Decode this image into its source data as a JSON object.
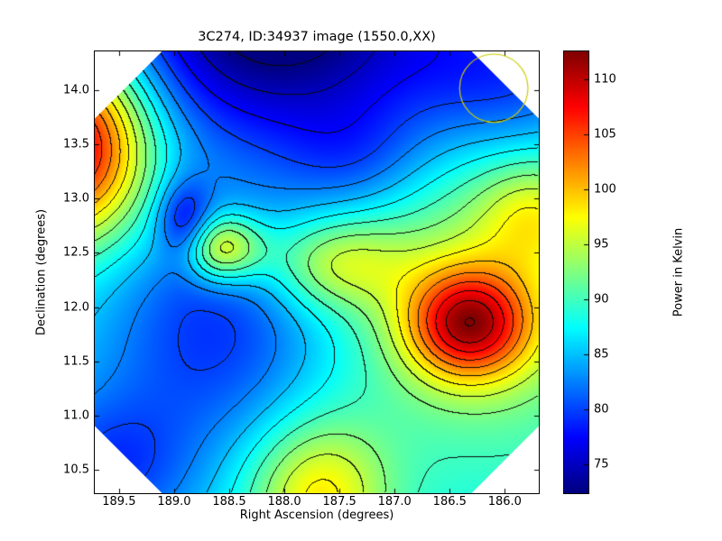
{
  "figure": {
    "title": "3C274, ID:34937 image (1550.0,XX)",
    "background": "#ffffff"
  },
  "axes": {
    "xlabel": "Right Ascension (degrees)",
    "ylabel": "Declination (degrees)",
    "xlim": [
      189.72,
      185.7
    ],
    "ylim": [
      10.29,
      14.36
    ],
    "x_ticks": [
      189.5,
      189.0,
      188.5,
      188.0,
      187.5,
      187.0,
      186.5,
      186.0
    ],
    "x_tick_labels": [
      "189.5",
      "189.0",
      "188.5",
      "188.0",
      "187.5",
      "187.0",
      "186.5",
      "186.0"
    ],
    "y_ticks": [
      10.5,
      11.0,
      11.5,
      12.0,
      12.5,
      13.0,
      13.5,
      14.0
    ],
    "y_tick_labels": [
      "10.5",
      "11.0",
      "11.5",
      "12.0",
      "12.5",
      "13.0",
      "13.5",
      "14.0"
    ]
  },
  "colorbar": {
    "label": "Power in Kelvin",
    "ticks": [
      75,
      80,
      85,
      90,
      95,
      100,
      105,
      110
    ],
    "tick_labels": [
      "75",
      "80",
      "85",
      "90",
      "95",
      "100",
      "105",
      "110"
    ],
    "vmin": 72.5,
    "vmax": 112.5,
    "colormap": "jet"
  },
  "chart_data": {
    "type": "heatmap",
    "subtype": "filled-contour-map",
    "title": "3C274, ID:34937 image (1550.0,XX)",
    "xlabel": "Right Ascension (degrees)",
    "ylabel": "Declination (degrees)",
    "x_axis_reversed": true,
    "value_label": "Power in Kelvin",
    "value_range": [
      72.5,
      112.5
    ],
    "base_level": 87,
    "contour_interval": 2.5,
    "contour_line_color": "#000000",
    "colormap": "jet",
    "mask_shape": "octagon-clipped-corners",
    "corner_cut_fraction": 0.15,
    "features": [
      {
        "name": "cold-region-top-center",
        "ra": 188.05,
        "dec": 14.7,
        "sigma_ra": 1.05,
        "sigma_dec": 0.85,
        "amplitude": -17
      },
      {
        "name": "hot-spot-left-edge",
        "ra": 189.95,
        "dec": 13.5,
        "sigma_ra": 0.5,
        "sigma_dec": 0.6,
        "amplitude": 24
      },
      {
        "name": "hot-spot-lower-right",
        "ra": 186.33,
        "dec": 11.85,
        "sigma_ra": 0.4,
        "sigma_dec": 0.36,
        "amplitude": 19
      },
      {
        "name": "warm-broad-right-side",
        "ra": 186.15,
        "dec": 12.2,
        "sigma_ra": 1.1,
        "sigma_dec": 1.2,
        "amplitude": 7
      },
      {
        "name": "cold-spot-mid-left",
        "ra": 188.9,
        "dec": 12.75,
        "sigma_ra": 0.18,
        "sigma_dec": 0.28,
        "amplitude": -9
      },
      {
        "name": "cool-broad-center-left",
        "ra": 188.6,
        "dec": 11.8,
        "sigma_ra": 0.75,
        "sigma_dec": 0.8,
        "amplitude": -8
      },
      {
        "name": "cool-bottom-left-corner",
        "ra": 189.6,
        "dec": 10.5,
        "sigma_ra": 0.55,
        "sigma_dec": 0.5,
        "amplitude": -7
      },
      {
        "name": "warm-peak-center",
        "ra": 188.6,
        "dec": 12.55,
        "sigma_ra": 0.28,
        "sigma_dec": 0.22,
        "amplitude": 14
      },
      {
        "name": "warm-peak-center-right",
        "ra": 187.55,
        "dec": 12.4,
        "sigma_ra": 0.45,
        "sigma_dec": 0.3,
        "amplitude": 8
      },
      {
        "name": "warm-spot-bottom-center",
        "ra": 187.7,
        "dec": 10.25,
        "sigma_ra": 0.45,
        "sigma_dec": 0.5,
        "amplitude": 11
      },
      {
        "name": "warm-spot-right-edge",
        "ra": 185.75,
        "dec": 12.85,
        "sigma_ra": 0.35,
        "sigma_dec": 0.35,
        "amplitude": 6
      },
      {
        "name": "cool-spot-upper-center",
        "ra": 187.35,
        "dec": 13.35,
        "sigma_ra": 0.5,
        "sigma_dec": 0.4,
        "amplitude": -5
      },
      {
        "name": "cool-top-right-corner",
        "ra": 185.95,
        "dec": 14.1,
        "sigma_ra": 0.7,
        "sigma_dec": 0.55,
        "amplitude": -8
      }
    ],
    "annotation_circle": {
      "ra": 186.1,
      "dec": 14.02,
      "radius_deg": 0.31,
      "color": "#cdcd00"
    }
  }
}
